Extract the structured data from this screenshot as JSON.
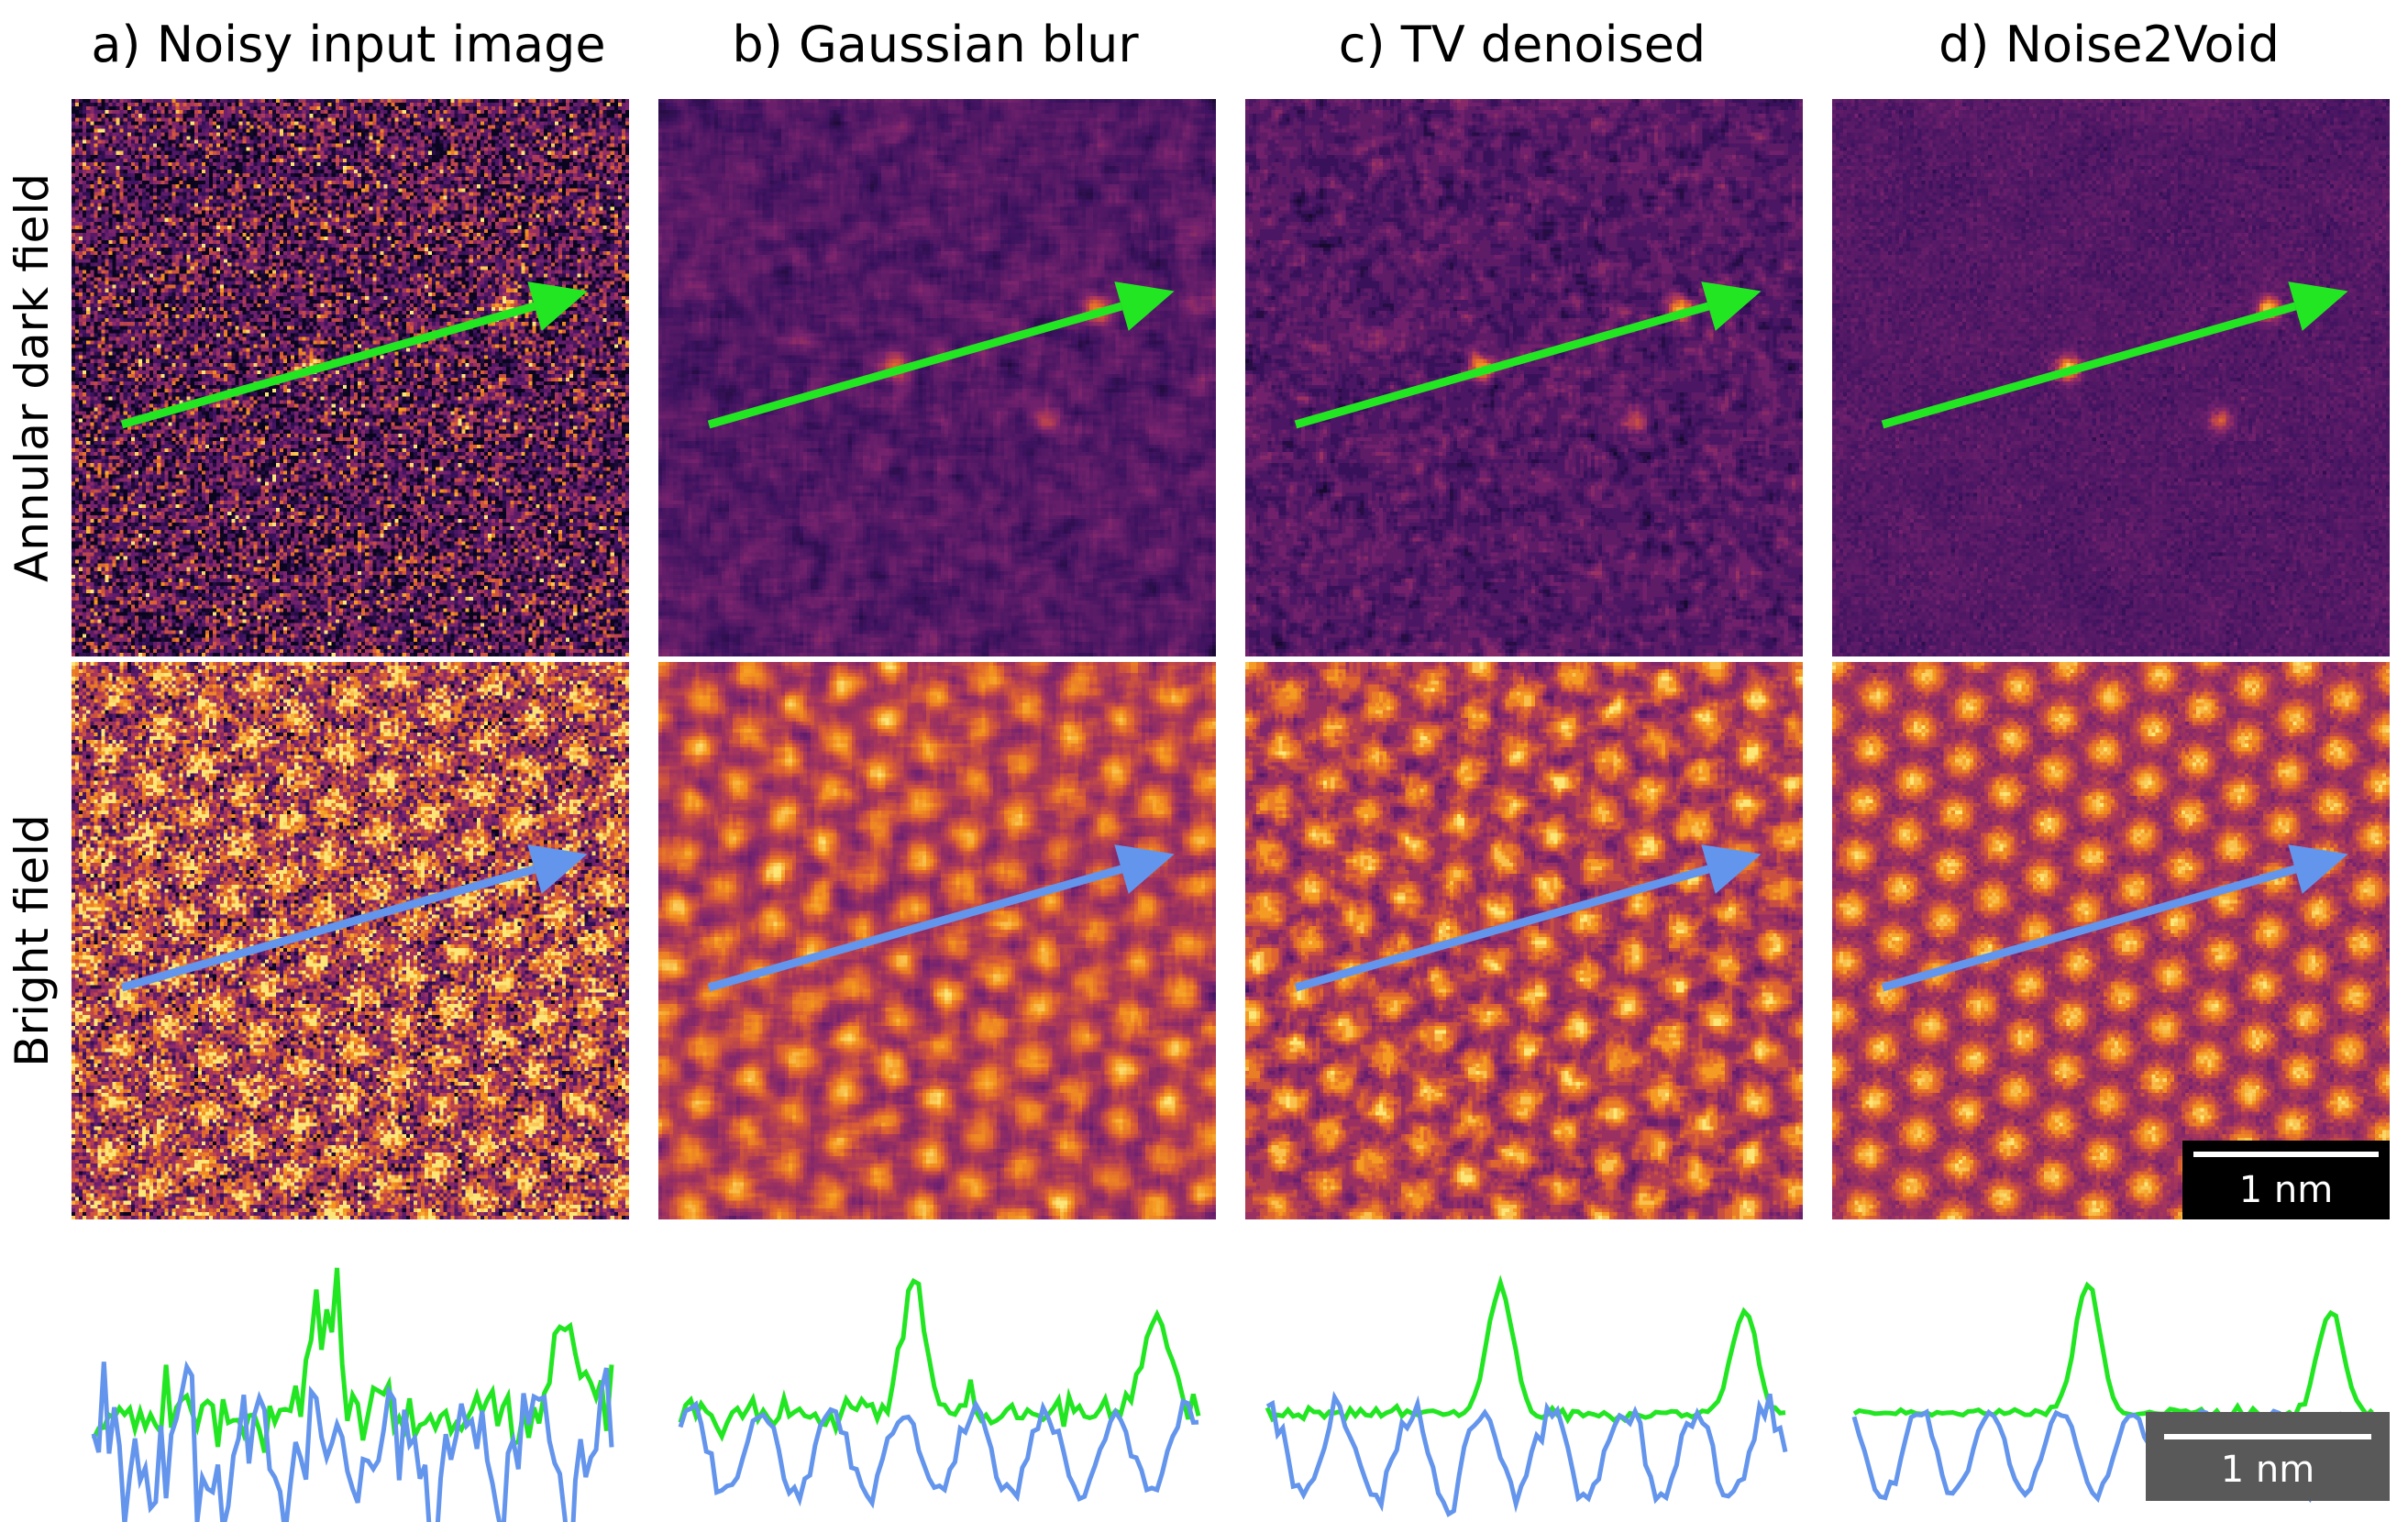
{
  "columns": [
    {
      "label": "a)",
      "title": "Noisy input image",
      "style": "noisy"
    },
    {
      "label": "b)",
      "title": "Gaussian blur",
      "style": "gauss"
    },
    {
      "label": "c)",
      "title": "TV denoised",
      "style": "tv"
    },
    {
      "label": "d)",
      "title": "Noise2Void",
      "style": "n2v"
    }
  ],
  "rows": [
    {
      "label": "Annular dark field",
      "arrow_color": "#22e622",
      "colormap": "inferno-dark"
    },
    {
      "label": "Bright field",
      "arrow_color": "#6495ed",
      "colormap": "inferno-bright"
    }
  ],
  "scalebars": {
    "image": "1 nm",
    "profile": "1 nm"
  },
  "profile_colors": {
    "adf": "#22e622",
    "bf": "#6495ed"
  }
}
